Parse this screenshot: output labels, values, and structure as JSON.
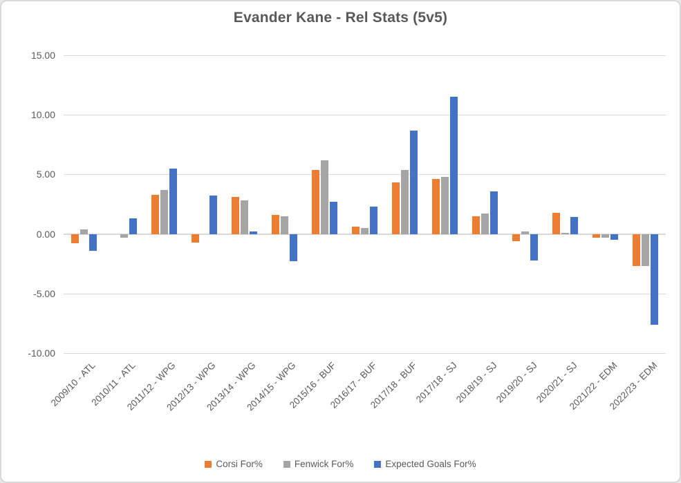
{
  "window": {
    "background": "#ffffff",
    "border_color": "#d9d9d9",
    "text_color": "#595959",
    "grid_color": "#d9d9d9"
  },
  "chart_data": {
    "type": "bar",
    "title": "Evander Kane - Rel Stats (5v5)",
    "categories": [
      "2009/10 - ATL",
      "2010/11 - ATL",
      "2011/12 - WPG",
      "2012/13 - WPG",
      "2013/14 - WPG",
      "2014/15 - WPG",
      "2015/16 - BUF",
      "2016/17 - BUF",
      "2017/18 - BUF",
      "2017/18 - SJ",
      "2018/19 - SJ",
      "2019/20 - SJ",
      "2020/21 - SJ",
      "2021/22 - EDM",
      "2022/23 - EDM"
    ],
    "series": [
      {
        "name": "Corsi For%",
        "color": "#ED7D31",
        "values": [
          -0.8,
          0.0,
          3.3,
          -0.7,
          3.1,
          1.6,
          5.4,
          0.6,
          4.3,
          4.6,
          1.5,
          -0.6,
          1.8,
          -0.3,
          -2.7
        ]
      },
      {
        "name": "Fenwick For%",
        "color": "#A5A5A5",
        "values": [
          0.4,
          -0.3,
          3.7,
          0.0,
          2.8,
          1.5,
          6.2,
          0.5,
          5.4,
          4.8,
          1.7,
          0.2,
          0.1,
          -0.3,
          -2.7
        ]
      },
      {
        "name": "Expected Goals For%",
        "color": "#4472C4",
        "values": [
          -1.4,
          1.3,
          5.5,
          3.2,
          0.2,
          -2.3,
          2.7,
          2.3,
          8.7,
          11.5,
          3.6,
          -2.2,
          1.4,
          -0.5,
          -7.6
        ]
      }
    ],
    "ylim": [
      -10,
      15
    ],
    "ytick_step": 5,
    "ytick_labels": [
      "15.00",
      "10.00",
      "5.00",
      "0.00",
      "-5.00",
      "-10.00"
    ],
    "grid": true,
    "legend_position": "bottom",
    "xlabel": "",
    "ylabel": ""
  }
}
